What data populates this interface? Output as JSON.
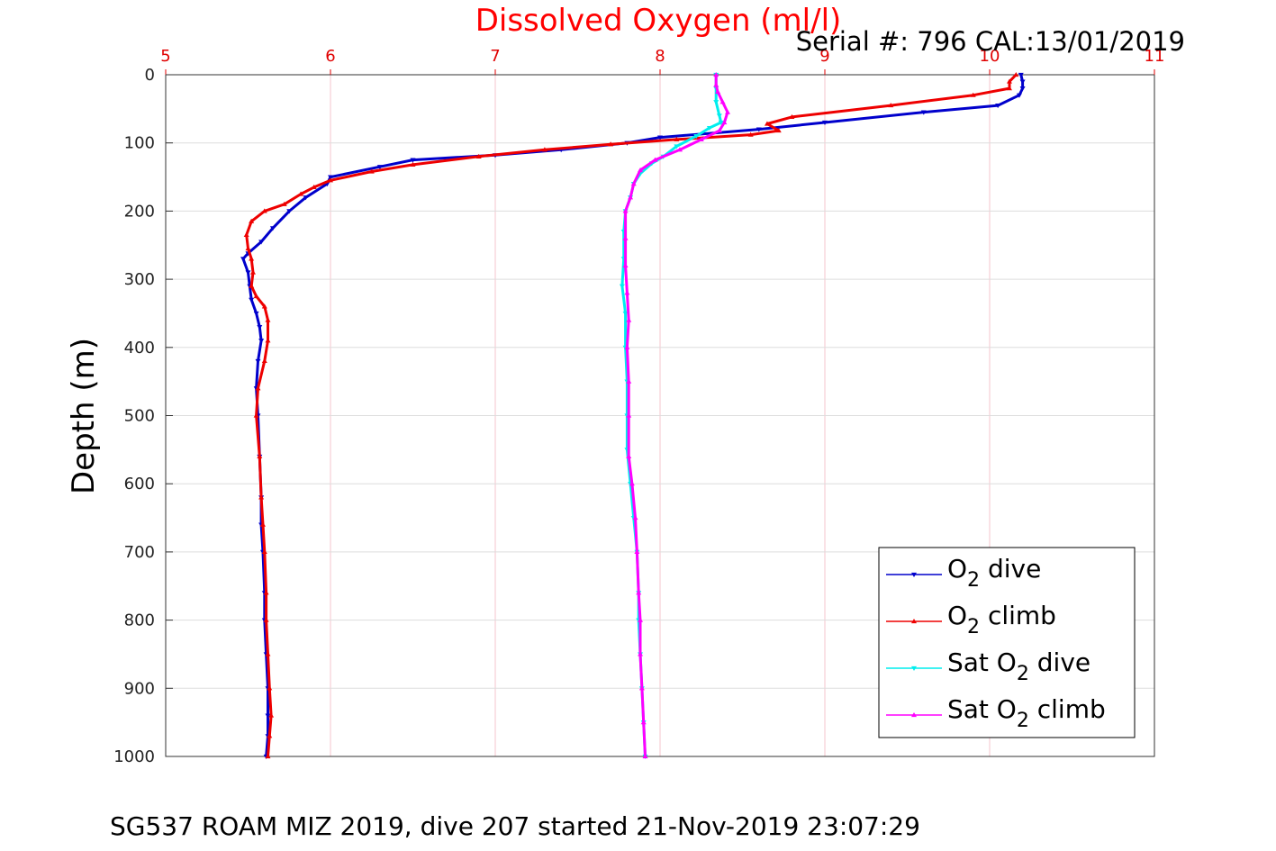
{
  "chart_data": {
    "type": "line",
    "title": "Dissolved Oxygen (ml/l)",
    "serial_label": "Serial #: 796  CAL:13/01/2019",
    "footer": "SG537 ROAM MIZ 2019, dive 207 started 21-Nov-2019 23:07:29",
    "ylabel": "Depth (m)",
    "xlim": [
      5,
      11
    ],
    "ylim": [
      0,
      1000
    ],
    "y_reversed": true,
    "x_axis_position": "top",
    "x_ticks": [
      "5",
      "6",
      "7",
      "8",
      "9",
      "10",
      "11"
    ],
    "y_ticks": [
      "0",
      "100",
      "200",
      "300",
      "400",
      "500",
      "600",
      "700",
      "800",
      "900",
      "1000"
    ],
    "grid": true,
    "legend_position": "bottom-right",
    "series": [
      {
        "name_parts": [
          "O",
          "2",
          " dive"
        ],
        "color": "#0000cc",
        "marker": "triangle-down",
        "points": [
          [
            10.19,
            0
          ],
          [
            10.2,
            10
          ],
          [
            10.2,
            20
          ],
          [
            10.18,
            30
          ],
          [
            10.05,
            45
          ],
          [
            9.6,
            55
          ],
          [
            9.0,
            70
          ],
          [
            8.6,
            80
          ],
          [
            8.0,
            92
          ],
          [
            7.8,
            100
          ],
          [
            7.4,
            110
          ],
          [
            7.0,
            118
          ],
          [
            6.5,
            125
          ],
          [
            6.3,
            135
          ],
          [
            6.0,
            150
          ],
          [
            5.98,
            160
          ],
          [
            5.85,
            180
          ],
          [
            5.75,
            200
          ],
          [
            5.65,
            225
          ],
          [
            5.58,
            245
          ],
          [
            5.5,
            262
          ],
          [
            5.47,
            270
          ],
          [
            5.5,
            290
          ],
          [
            5.51,
            310
          ],
          [
            5.52,
            330
          ],
          [
            5.55,
            350
          ],
          [
            5.57,
            370
          ],
          [
            5.58,
            390
          ],
          [
            5.56,
            420
          ],
          [
            5.55,
            460
          ],
          [
            5.56,
            500
          ],
          [
            5.57,
            560
          ],
          [
            5.58,
            620
          ],
          [
            5.58,
            660
          ],
          [
            5.59,
            700
          ],
          [
            5.6,
            760
          ],
          [
            5.6,
            800
          ],
          [
            5.61,
            850
          ],
          [
            5.62,
            900
          ],
          [
            5.62,
            940
          ],
          [
            5.62,
            970
          ],
          [
            5.61,
            1000
          ]
        ]
      },
      {
        "name_parts": [
          "O",
          "2",
          " climb"
        ],
        "color": "#ee0000",
        "marker": "triangle-up",
        "points": [
          [
            10.16,
            0
          ],
          [
            10.12,
            10
          ],
          [
            10.12,
            20
          ],
          [
            9.9,
            30
          ],
          [
            9.4,
            45
          ],
          [
            8.8,
            62
          ],
          [
            8.65,
            72
          ],
          [
            8.72,
            82
          ],
          [
            8.55,
            88
          ],
          [
            8.1,
            95
          ],
          [
            7.7,
            102
          ],
          [
            7.3,
            110
          ],
          [
            6.9,
            120
          ],
          [
            6.5,
            132
          ],
          [
            6.25,
            142
          ],
          [
            6.0,
            155
          ],
          [
            5.9,
            165
          ],
          [
            5.82,
            175
          ],
          [
            5.72,
            190
          ],
          [
            5.6,
            200
          ],
          [
            5.52,
            215
          ],
          [
            5.49,
            235
          ],
          [
            5.5,
            255
          ],
          [
            5.52,
            270
          ],
          [
            5.53,
            290
          ],
          [
            5.52,
            310
          ],
          [
            5.55,
            325
          ],
          [
            5.6,
            340
          ],
          [
            5.62,
            360
          ],
          [
            5.62,
            390
          ],
          [
            5.6,
            420
          ],
          [
            5.56,
            460
          ],
          [
            5.55,
            500
          ],
          [
            5.57,
            560
          ],
          [
            5.58,
            620
          ],
          [
            5.59,
            660
          ],
          [
            5.6,
            700
          ],
          [
            5.61,
            760
          ],
          [
            5.61,
            800
          ],
          [
            5.62,
            850
          ],
          [
            5.63,
            900
          ],
          [
            5.64,
            940
          ],
          [
            5.63,
            970
          ],
          [
            5.62,
            1000
          ]
        ]
      },
      {
        "name_parts": [
          "Sat O",
          "2",
          " dive"
        ],
        "color": "#00eeee",
        "marker": "triangle-down",
        "points": [
          [
            8.34,
            0
          ],
          [
            8.34,
            20
          ],
          [
            8.34,
            40
          ],
          [
            8.36,
            60
          ],
          [
            8.37,
            70
          ],
          [
            8.3,
            78
          ],
          [
            8.22,
            90
          ],
          [
            8.1,
            105
          ],
          [
            8.02,
            120
          ],
          [
            7.95,
            130
          ],
          [
            7.88,
            145
          ],
          [
            7.84,
            160
          ],
          [
            7.82,
            180
          ],
          [
            7.79,
            200
          ],
          [
            7.78,
            230
          ],
          [
            7.78,
            270
          ],
          [
            7.77,
            310
          ],
          [
            7.79,
            350
          ],
          [
            7.79,
            400
          ],
          [
            7.8,
            450
          ],
          [
            7.8,
            500
          ],
          [
            7.8,
            550
          ],
          [
            7.82,
            600
          ],
          [
            7.84,
            650
          ],
          [
            7.86,
            700
          ],
          [
            7.87,
            760
          ],
          [
            7.87,
            800
          ],
          [
            7.88,
            850
          ],
          [
            7.89,
            900
          ],
          [
            7.9,
            950
          ],
          [
            7.91,
            1000
          ]
        ]
      },
      {
        "name_parts": [
          "Sat O",
          "2",
          " climb"
        ],
        "color": "#ff00ff",
        "marker": "triangle-up",
        "points": [
          [
            8.34,
            0
          ],
          [
            8.34,
            15
          ],
          [
            8.35,
            25
          ],
          [
            8.38,
            40
          ],
          [
            8.41,
            55
          ],
          [
            8.39,
            70
          ],
          [
            8.36,
            82
          ],
          [
            8.25,
            95
          ],
          [
            8.12,
            110
          ],
          [
            7.97,
            125
          ],
          [
            7.88,
            140
          ],
          [
            7.84,
            160
          ],
          [
            7.82,
            180
          ],
          [
            7.79,
            200
          ],
          [
            7.79,
            240
          ],
          [
            7.79,
            280
          ],
          [
            7.8,
            320
          ],
          [
            7.81,
            360
          ],
          [
            7.8,
            400
          ],
          [
            7.81,
            450
          ],
          [
            7.81,
            500
          ],
          [
            7.81,
            560
          ],
          [
            7.83,
            600
          ],
          [
            7.85,
            650
          ],
          [
            7.86,
            700
          ],
          [
            7.87,
            760
          ],
          [
            7.88,
            800
          ],
          [
            7.88,
            850
          ],
          [
            7.89,
            900
          ],
          [
            7.9,
            950
          ],
          [
            7.91,
            1000
          ]
        ]
      }
    ]
  }
}
